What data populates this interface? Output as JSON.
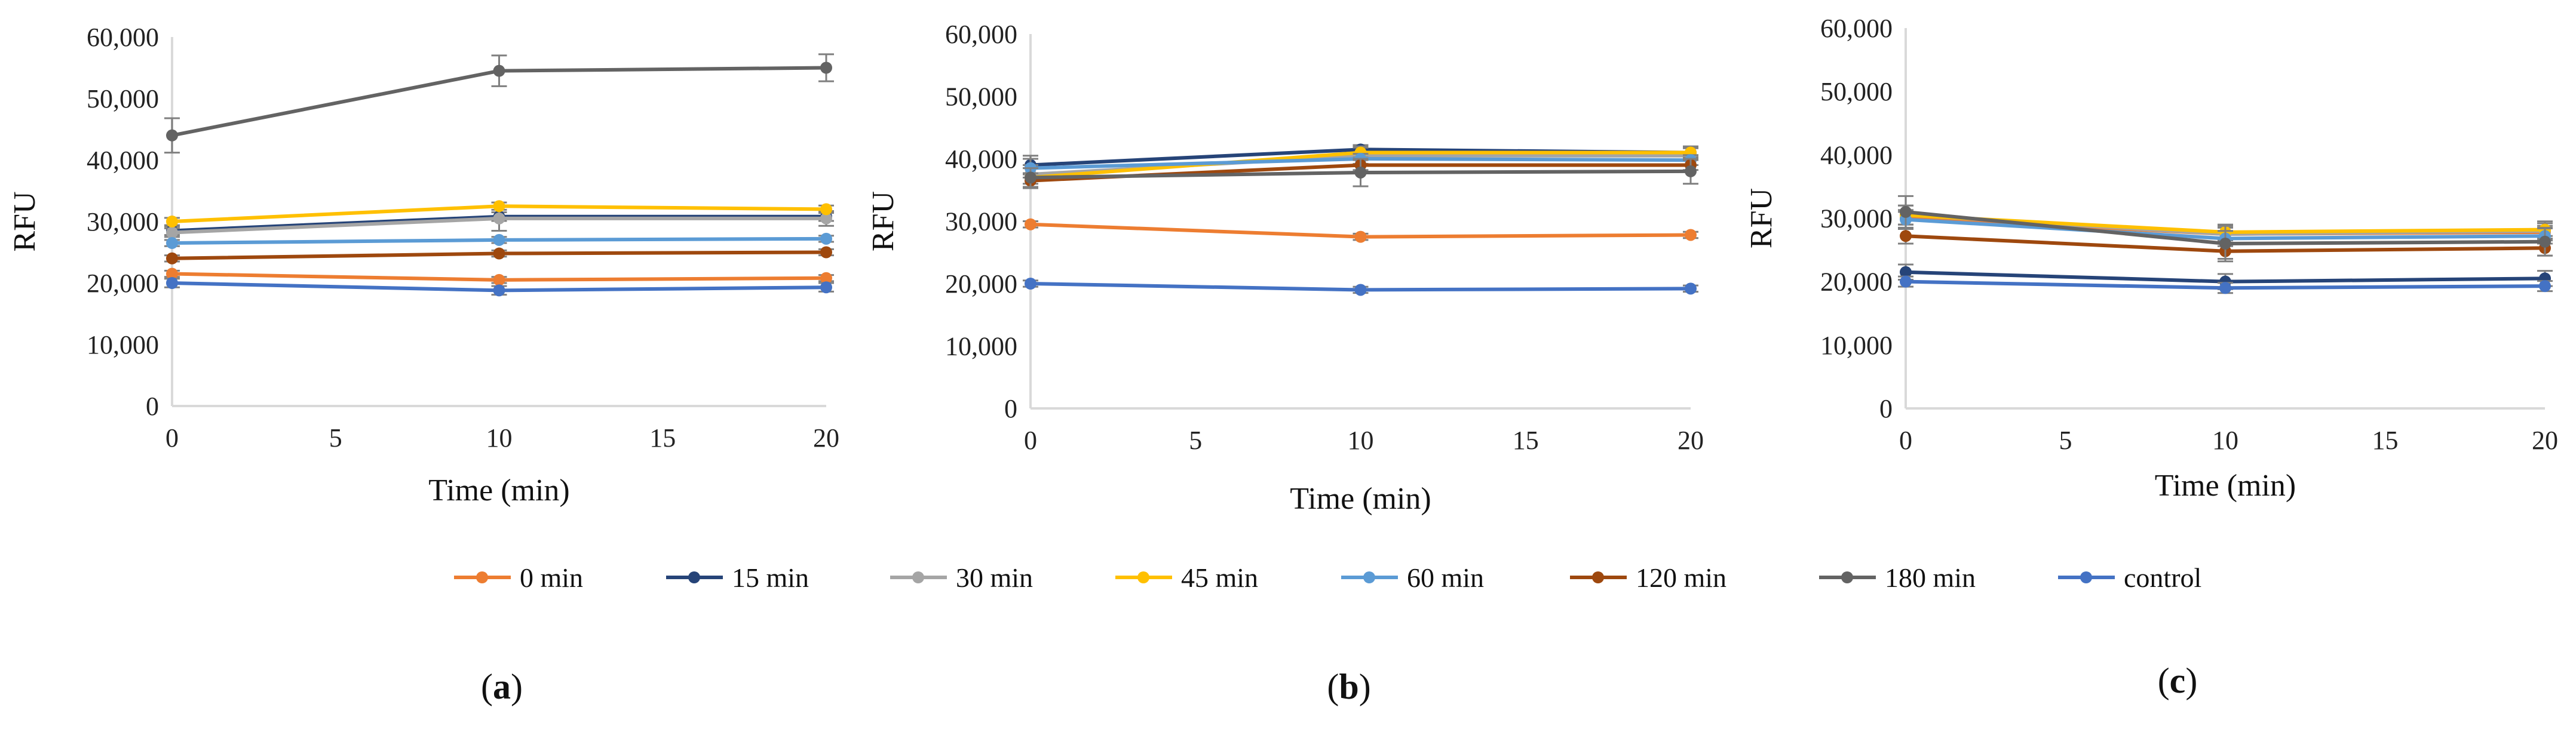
{
  "chart_data": [
    {
      "type": "line",
      "panel_label": "a",
      "xlabel": "Time (min)",
      "ylabel": "RFU",
      "xlim": [
        0,
        20
      ],
      "ylim": [
        0,
        60000
      ],
      "xticks": [
        "0",
        "5",
        "10",
        "15",
        "20"
      ],
      "yticks": [
        "0",
        "10,000",
        "20,000",
        "30,000",
        "40,000",
        "50,000",
        "60,000"
      ],
      "x": [
        0,
        10,
        20
      ],
      "series": [
        {
          "name": "0 min",
          "values": [
            21500,
            20500,
            20800
          ],
          "errors": [
            500,
            500,
            500
          ]
        },
        {
          "name": "15 min",
          "values": [
            28500,
            30800,
            30800
          ],
          "errors": [
            700,
            700,
            700
          ]
        },
        {
          "name": "30 min",
          "values": [
            28200,
            30500,
            30500
          ],
          "errors": [
            700,
            2000,
            1200
          ]
        },
        {
          "name": "45 min",
          "values": [
            30000,
            32500,
            32000
          ],
          "errors": [
            600,
            600,
            600
          ]
        },
        {
          "name": "60 min",
          "values": [
            26500,
            27000,
            27200
          ],
          "errors": [
            500,
            500,
            500
          ]
        },
        {
          "name": "120 min",
          "values": [
            24000,
            24800,
            25000
          ],
          "errors": [
            500,
            500,
            500
          ]
        },
        {
          "name": "180 min",
          "values": [
            44000,
            54500,
            55000
          ],
          "errors": [
            2800,
            2500,
            2200
          ]
        },
        {
          "name": "control",
          "values": [
            20000,
            18800,
            19300
          ],
          "errors": [
            700,
            700,
            700
          ]
        }
      ]
    },
    {
      "type": "line",
      "panel_label": "b",
      "xlabel": "Time (min)",
      "ylabel": "RFU",
      "xlim": [
        0,
        20
      ],
      "ylim": [
        0,
        60000
      ],
      "xticks": [
        "0",
        "5",
        "10",
        "15",
        "20"
      ],
      "yticks": [
        "0",
        "10,000",
        "20,000",
        "30,000",
        "40,000",
        "50,000",
        "60,000"
      ],
      "x": [
        0,
        10,
        20
      ],
      "series": [
        {
          "name": "0 min",
          "values": [
            29500,
            27500,
            27800
          ],
          "errors": [
            500,
            500,
            500
          ]
        },
        {
          "name": "15 min",
          "values": [
            39000,
            41500,
            41000
          ],
          "errors": [
            1500,
            700,
            700
          ]
        },
        {
          "name": "30 min",
          "values": [
            37500,
            40500,
            40500
          ],
          "errors": [
            1500,
            1500,
            1500
          ]
        },
        {
          "name": "45 min",
          "values": [
            37000,
            41000,
            41000
          ],
          "errors": [
            1500,
            800,
            800
          ]
        },
        {
          "name": "60 min",
          "values": [
            38500,
            40000,
            39800
          ],
          "errors": [
            1500,
            800,
            800
          ]
        },
        {
          "name": "120 min",
          "values": [
            36500,
            39000,
            39000
          ],
          "errors": [
            1200,
            800,
            800
          ]
        },
        {
          "name": "180 min",
          "values": [
            37000,
            37800,
            38000
          ],
          "errors": [
            1500,
            2200,
            2000
          ]
        },
        {
          "name": "control",
          "values": [
            20000,
            19000,
            19200
          ],
          "errors": [
            500,
            500,
            500
          ]
        }
      ]
    },
    {
      "type": "line",
      "panel_label": "c",
      "xlabel": "Time (min)",
      "ylabel": "RFU",
      "xlim": [
        0,
        20
      ],
      "ylim": [
        0,
        60000
      ],
      "xticks": [
        "0",
        "5",
        "10",
        "15",
        "20"
      ],
      "yticks": [
        "0",
        "10,000",
        "20,000",
        "30,000",
        "40,000",
        "50,000",
        "60,000"
      ],
      "x": [
        0,
        10,
        20
      ],
      "series": [
        {
          "name": "0 min",
          "values": [
            30000,
            27500,
            27800
          ],
          "errors": [
            1000,
            1000,
            1000
          ]
        },
        {
          "name": "15 min",
          "values": [
            21500,
            20000,
            20500
          ],
          "errors": [
            1200,
            1200,
            1200
          ]
        },
        {
          "name": "30 min",
          "values": [
            30500,
            27500,
            28000
          ],
          "errors": [
            1500,
            1500,
            1500
          ]
        },
        {
          "name": "45 min",
          "values": [
            30500,
            27800,
            28200
          ],
          "errors": [
            1500,
            1000,
            1000
          ]
        },
        {
          "name": "60 min",
          "values": [
            29800,
            26800,
            27200
          ],
          "errors": [
            1500,
            1200,
            1200
          ]
        },
        {
          "name": "120 min",
          "values": [
            27200,
            24800,
            25300
          ],
          "errors": [
            1200,
            1200,
            1200
          ]
        },
        {
          "name": "180 min",
          "values": [
            31000,
            26000,
            26300
          ],
          "errors": [
            2500,
            2800,
            2200
          ]
        },
        {
          "name": "control",
          "values": [
            20000,
            19000,
            19300
          ],
          "errors": [
            800,
            800,
            800
          ]
        }
      ]
    }
  ],
  "legend": {
    "placement": "bottom-center",
    "items": [
      {
        "name": "0 min",
        "color": "#ED7D31"
      },
      {
        "name": "15 min",
        "color": "#264478"
      },
      {
        "name": "30 min",
        "color": "#A5A5A5"
      },
      {
        "name": "45 min",
        "color": "#FFC000"
      },
      {
        "name": "60 min",
        "color": "#5B9BD5"
      },
      {
        "name": "120 min",
        "color": "#9E480E"
      },
      {
        "name": "180 min",
        "color": "#636363"
      },
      {
        "name": "control",
        "color": "#4472C4"
      }
    ]
  },
  "colors": {
    "axis": "#D9D9D9",
    "error_bar": "#7F7F7F"
  }
}
